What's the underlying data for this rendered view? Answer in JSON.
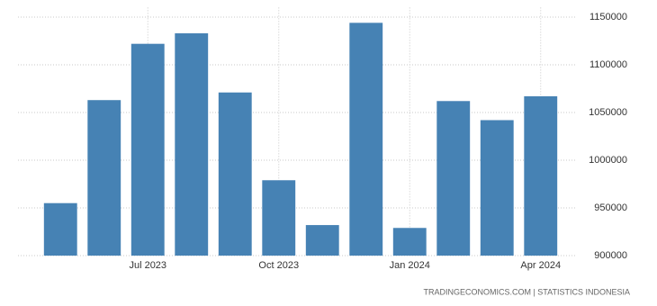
{
  "chart_data": {
    "type": "bar",
    "categories": [
      null,
      null,
      "Jul 2023",
      null,
      null,
      "Oct 2023",
      null,
      null,
      "Jan 2024",
      null,
      null,
      "Apr 2024"
    ],
    "values": [
      955000,
      1063000,
      1122000,
      1133000,
      1071000,
      979000,
      932000,
      1144000,
      929000,
      1062000,
      1042000,
      1067000
    ],
    "color": "#4682b4",
    "ylim": [
      900000,
      1160000
    ],
    "yticks": [
      900000,
      950000,
      1000000,
      1050000,
      1100000,
      1150000
    ],
    "grid": true,
    "source": "TRADINGECONOMICS.COM | STATISTICS INDONESIA"
  }
}
